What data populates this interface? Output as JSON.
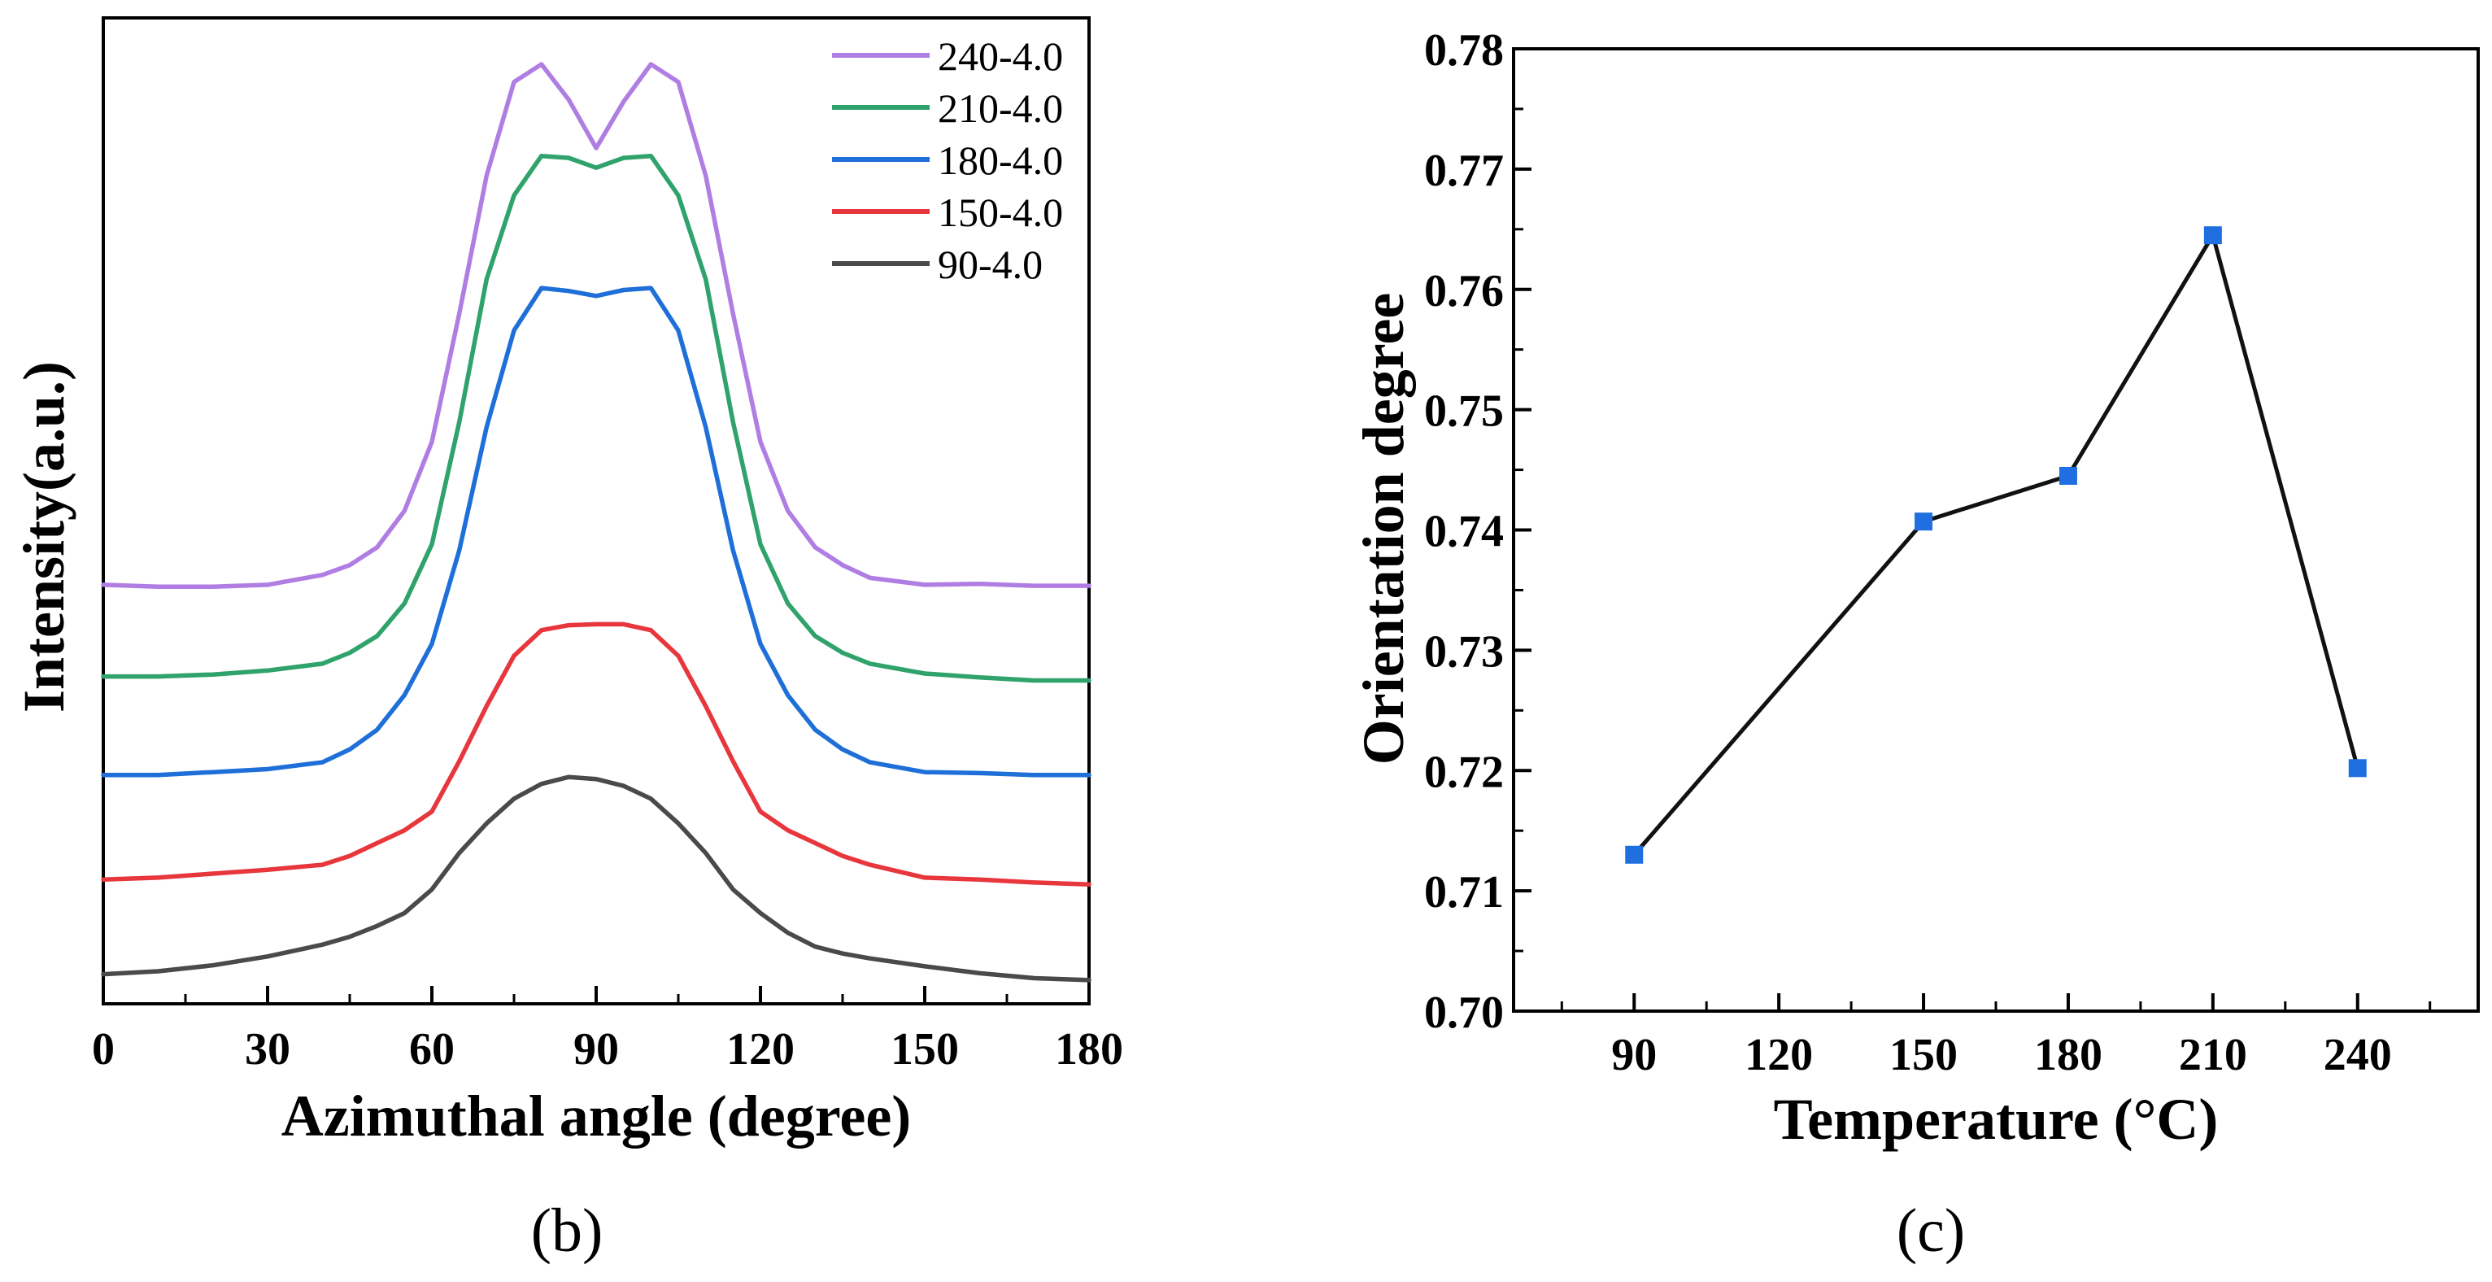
{
  "chart_data": [
    {
      "id": "b",
      "type": "line",
      "panel_label": "(b)",
      "title": "",
      "xlabel": "Azimuthal angle (degree)",
      "ylabel": "Intensity(a.u.)",
      "xlim": [
        0,
        180
      ],
      "xticks": [
        "0",
        "30",
        "60",
        "90",
        "120",
        "150",
        "180"
      ],
      "yticks_shown": false,
      "legend_position": "top-right",
      "note": "curves are vertically offset for clarity; y values are in arbitrary units (0 = axis bottom, 100 = axis top)",
      "x": [
        0,
        10,
        20,
        30,
        40,
        45,
        50,
        55,
        60,
        65,
        70,
        75,
        80,
        85,
        90,
        95,
        100,
        105,
        110,
        115,
        120,
        125,
        130,
        135,
        140,
        150,
        160,
        170,
        180
      ],
      "series": [
        {
          "name": "240-4.0",
          "color": "#b07ee3",
          "values": [
            42.5,
            42.3,
            42.3,
            42.5,
            43.5,
            44.5,
            46.3,
            50,
            57,
            70,
            84,
            93.5,
            95.3,
            91.7,
            86.8,
            91.5,
            95.3,
            93.5,
            84,
            70,
            57,
            50,
            46.3,
            44.5,
            43.2,
            42.5,
            42.6,
            42.4,
            42.4
          ]
        },
        {
          "name": "210-4.0",
          "color": "#2fa36b",
          "values": [
            33.2,
            33.2,
            33.4,
            33.8,
            34.5,
            35.6,
            37.3,
            40.6,
            46.6,
            59,
            73.5,
            82,
            86,
            85.8,
            84.8,
            85.8,
            86,
            82,
            73.5,
            59,
            46.6,
            40.6,
            37.3,
            35.6,
            34.5,
            33.5,
            33.1,
            32.8,
            32.8
          ]
        },
        {
          "name": "180-4.0",
          "color": "#1f6fd8",
          "values": [
            23.2,
            23.2,
            23.5,
            23.8,
            24.5,
            25.8,
            27.8,
            31.3,
            36.5,
            46,
            58.5,
            68.3,
            72.6,
            72.3,
            71.8,
            72.4,
            72.6,
            68.3,
            58.5,
            46,
            36.5,
            31.3,
            27.8,
            25.8,
            24.5,
            23.5,
            23.4,
            23.2,
            23.2
          ]
        },
        {
          "name": "150-4.0",
          "color": "#e8373c",
          "values": [
            12.6,
            12.8,
            13.2,
            13.6,
            14.1,
            15,
            16.3,
            17.6,
            19.5,
            24.6,
            30.2,
            35.3,
            37.9,
            38.4,
            38.5,
            38.5,
            37.9,
            35.3,
            30.2,
            24.6,
            19.5,
            17.6,
            16.3,
            15,
            14.1,
            12.8,
            12.6,
            12.3,
            12.1
          ]
        },
        {
          "name": "90-4.0",
          "color": "#4a4a4a",
          "values": [
            3,
            3.3,
            3.9,
            4.8,
            6,
            6.8,
            7.9,
            9.2,
            11.6,
            15.3,
            18.3,
            20.8,
            22.3,
            23,
            22.8,
            22.1,
            20.8,
            18.3,
            15.3,
            11.6,
            9.2,
            7.2,
            5.8,
            5.1,
            4.6,
            3.8,
            3.1,
            2.6,
            2.4
          ]
        }
      ]
    },
    {
      "id": "c",
      "type": "line",
      "panel_label": "(c)",
      "title": "",
      "xlabel": "Temperature (°C)",
      "ylabel": "Orientation degree",
      "xlim": [
        65,
        265
      ],
      "ylim": [
        0.7,
        0.78
      ],
      "xticks": [
        "90",
        "120",
        "150",
        "180",
        "210",
        "240"
      ],
      "yticks": [
        "0.70",
        "0.71",
        "0.72",
        "0.73",
        "0.74",
        "0.75",
        "0.76",
        "0.77",
        "0.78"
      ],
      "marker": "square",
      "line_color": "#111111",
      "marker_color": "#1f6fe0",
      "series": [
        {
          "name": "Orientation degree",
          "x": [
            90,
            150,
            180,
            210,
            240
          ],
          "values": [
            0.713,
            0.7407,
            0.7445,
            0.7645,
            0.7202
          ]
        }
      ]
    }
  ]
}
